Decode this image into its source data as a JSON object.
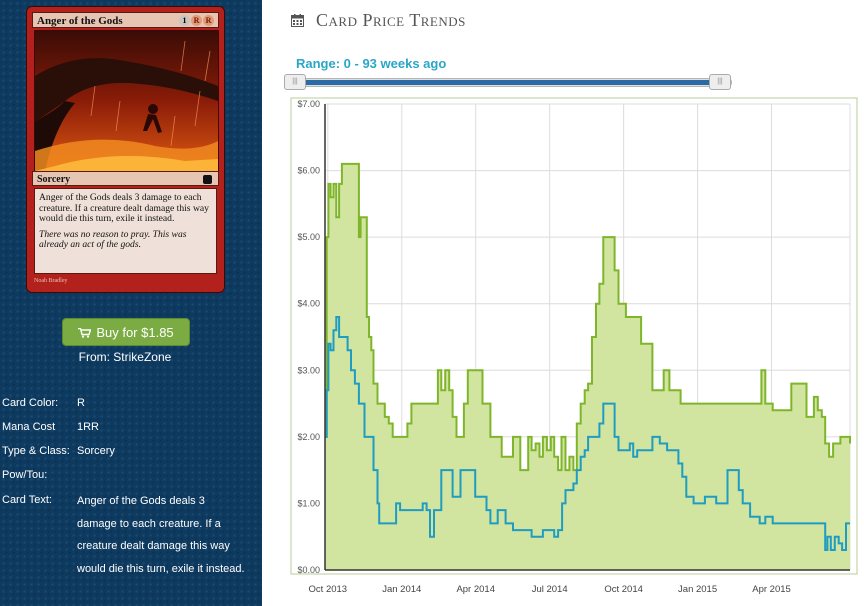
{
  "card": {
    "name": "Anger of the Gods",
    "mana_symbols": [
      "1",
      "R",
      "R"
    ],
    "type_line": "Sorcery",
    "rules_text": "Anger of the Gods deals 3 damage to each creature. If a creature dealt damage this way would die this turn, exile it instead.",
    "flavor_text": "There was no reason to pray. This was already an act of the gods.",
    "artist": "Noah Bradley"
  },
  "buy": {
    "label": "Buy for $1.85",
    "from": "From: StrikeZone",
    "icon": "shopping-cart-icon"
  },
  "attributes": {
    "color_label": "Card Color:",
    "color_value": "R",
    "mana_label": "Mana Cost",
    "mana_value": "1RR",
    "type_label": "Type & Class:",
    "type_value": "Sorcery",
    "powtou_label": "Pow/Tou:",
    "powtou_value": "",
    "text_label": "Card Text:",
    "text_value": "Anger of the Gods deals 3 damage to each creature. If a creature dealt damage this way would die this turn, exile it instead."
  },
  "header": {
    "title": "Card Price Trends",
    "icon": "calendar-icon"
  },
  "range": {
    "label": "Range: 0 - 93 weeks ago",
    "min_weeks_ago": 0,
    "max_weeks_ago": 93
  },
  "colors": {
    "sidebar": "#0f3a5f",
    "buy_button": "#7aac43",
    "range_label": "#2aa6c8",
    "slider_fill": "#2c6aa5",
    "paper_line": "#7fb52a",
    "paper_fill": "#d1e5a0",
    "online_line": "#1f9cc1"
  },
  "chart_data": {
    "type": "line",
    "x_tick_labels": [
      "Oct 2013",
      "Jan 2014",
      "Apr 2014",
      "Jul 2014",
      "Oct 2014",
      "Jan 2015",
      "Apr 2015"
    ],
    "y_tick_labels": [
      "$0.00",
      "$1.00",
      "$2.00",
      "$3.00",
      "$4.00",
      "$5.00",
      "$6.00",
      "$7.00"
    ],
    "ylim": [
      0,
      7
    ],
    "x_unit": "weeks since Sep 2013",
    "xlim": [
      0,
      93
    ],
    "grid": true,
    "series": [
      {
        "color": "#7fb52a",
        "fill": "#d1e5a0",
        "type": "area",
        "points": [
          [
            0,
            2.0
          ],
          [
            0.3,
            5.0
          ],
          [
            0.6,
            5.8
          ],
          [
            1,
            5.6
          ],
          [
            1.5,
            5.8
          ],
          [
            2,
            5.3
          ],
          [
            2.5,
            5.8
          ],
          [
            3,
            6.1
          ],
          [
            4,
            6.1
          ],
          [
            5,
            6.1
          ],
          [
            5.6,
            6.1
          ],
          [
            6,
            5.0
          ],
          [
            6.3,
            5.3
          ],
          [
            7,
            5.3
          ],
          [
            7.4,
            3.8
          ],
          [
            7.8,
            3.5
          ],
          [
            8.2,
            3.3
          ],
          [
            8.6,
            2.8
          ],
          [
            9.3,
            2.5
          ],
          [
            10,
            2.5
          ],
          [
            10.6,
            2.3
          ],
          [
            11.3,
            2.2
          ],
          [
            12,
            2.0
          ],
          [
            13,
            2.0
          ],
          [
            14,
            2.0
          ],
          [
            14.6,
            2.2
          ],
          [
            15.3,
            2.5
          ],
          [
            16.6,
            2.5
          ],
          [
            17.3,
            2.5
          ],
          [
            18,
            2.5
          ],
          [
            19.3,
            2.5
          ],
          [
            20,
            3.0
          ],
          [
            20.6,
            2.7
          ],
          [
            21.3,
            3.0
          ],
          [
            22,
            2.7
          ],
          [
            22.6,
            2.3
          ],
          [
            23.3,
            2.0
          ],
          [
            24.6,
            2.5
          ],
          [
            25.3,
            3.0
          ],
          [
            26,
            3.0
          ],
          [
            27.3,
            3.0
          ],
          [
            27.9,
            2.5
          ],
          [
            28.5,
            2.5
          ],
          [
            29.3,
            2.0
          ],
          [
            30,
            2.0
          ],
          [
            31.3,
            1.7
          ],
          [
            32,
            1.7
          ],
          [
            33.3,
            2.0
          ],
          [
            34,
            2.0
          ],
          [
            34.6,
            1.5
          ],
          [
            35.3,
            1.5
          ],
          [
            36,
            2.0
          ],
          [
            36.6,
            1.8
          ],
          [
            37.3,
            1.9
          ],
          [
            38,
            1.7
          ],
          [
            38.6,
            2.0
          ],
          [
            39.3,
            1.8
          ],
          [
            40,
            2.0
          ],
          [
            40.6,
            1.7
          ],
          [
            41.3,
            1.5
          ],
          [
            41.9,
            2.0
          ],
          [
            42.6,
            1.5
          ],
          [
            43.3,
            1.7
          ],
          [
            44,
            1.5
          ],
          [
            44.6,
            2.2
          ],
          [
            45.3,
            2.5
          ],
          [
            46,
            2.7
          ],
          [
            46.6,
            2.8
          ],
          [
            47.3,
            3.5
          ],
          [
            48,
            4.0
          ],
          [
            48.6,
            4.3
          ],
          [
            49.3,
            5.0
          ],
          [
            50,
            5.0
          ],
          [
            50.6,
            5.0
          ],
          [
            51.3,
            4.5
          ],
          [
            52,
            4.0
          ],
          [
            52.6,
            4.0
          ],
          [
            53.3,
            3.8
          ],
          [
            54,
            3.8
          ],
          [
            54.6,
            3.8
          ],
          [
            55.3,
            3.8
          ],
          [
            56,
            3.4
          ],
          [
            57,
            3.4
          ],
          [
            58,
            2.7
          ],
          [
            59.3,
            2.7
          ],
          [
            60,
            3.0
          ],
          [
            61,
            2.7
          ],
          [
            62,
            2.7
          ],
          [
            63,
            2.5
          ],
          [
            65,
            2.5
          ],
          [
            67,
            2.5
          ],
          [
            69,
            2.5
          ],
          [
            71,
            2.5
          ],
          [
            73,
            2.5
          ],
          [
            75,
            2.5
          ],
          [
            76.6,
            2.5
          ],
          [
            77.3,
            3.0
          ],
          [
            78,
            2.5
          ],
          [
            79.3,
            2.4
          ],
          [
            80,
            2.4
          ],
          [
            82,
            2.4
          ],
          [
            82.6,
            2.8
          ],
          [
            84,
            2.8
          ],
          [
            85.3,
            2.3
          ],
          [
            86.6,
            2.6
          ],
          [
            87.3,
            2.4
          ],
          [
            88,
            2.3
          ],
          [
            88.6,
            1.9
          ],
          [
            89.3,
            1.7
          ],
          [
            90,
            1.9
          ],
          [
            91.3,
            2.0
          ],
          [
            92,
            2.0
          ],
          [
            93,
            1.9
          ]
        ]
      },
      {
        "color": "#1f9cc1",
        "type": "line",
        "points": [
          [
            0,
            2.0
          ],
          [
            0.3,
            2.7
          ],
          [
            0.6,
            3.4
          ],
          [
            1,
            3.3
          ],
          [
            1.5,
            3.6
          ],
          [
            2,
            3.8
          ],
          [
            2.5,
            3.5
          ],
          [
            3.3,
            3.5
          ],
          [
            4,
            3.3
          ],
          [
            4.6,
            3.0
          ],
          [
            5.3,
            2.8
          ],
          [
            6,
            2.5
          ],
          [
            7,
            2.0
          ],
          [
            8,
            2.0
          ],
          [
            8.6,
            1.5
          ],
          [
            9.3,
            1.0
          ],
          [
            9.6,
            0.7
          ],
          [
            10.6,
            0.7
          ],
          [
            11.3,
            0.7
          ],
          [
            12,
            0.7
          ],
          [
            12.6,
            1.0
          ],
          [
            13.3,
            0.9
          ],
          [
            14,
            0.9
          ],
          [
            15.3,
            0.9
          ],
          [
            16,
            0.9
          ],
          [
            17.3,
            1.0
          ],
          [
            18,
            0.9
          ],
          [
            18.6,
            0.5
          ],
          [
            19.3,
            0.9
          ],
          [
            20,
            0.9
          ],
          [
            20.6,
            1.5
          ],
          [
            21.3,
            1.5
          ],
          [
            22,
            1.5
          ],
          [
            22.6,
            1.1
          ],
          [
            23.3,
            1.1
          ],
          [
            24,
            1.5
          ],
          [
            25.3,
            1.5
          ],
          [
            26.6,
            1.1
          ],
          [
            27.3,
            1.1
          ],
          [
            28,
            1.1
          ],
          [
            28.6,
            0.9
          ],
          [
            29.3,
            0.7
          ],
          [
            30,
            0.7
          ],
          [
            30.6,
            0.9
          ],
          [
            31.3,
            0.9
          ],
          [
            32,
            0.7
          ],
          [
            33.3,
            0.6
          ],
          [
            34,
            0.6
          ],
          [
            35.3,
            0.6
          ],
          [
            36,
            0.6
          ],
          [
            36.6,
            0.5
          ],
          [
            37.3,
            0.5
          ],
          [
            38,
            0.5
          ],
          [
            38.6,
            0.6
          ],
          [
            39.3,
            0.6
          ],
          [
            40,
            0.6
          ],
          [
            40.6,
            0.5
          ],
          [
            41.3,
            0.6
          ],
          [
            42,
            1.0
          ],
          [
            42.6,
            1.2
          ],
          [
            43.3,
            1.2
          ],
          [
            44,
            1.3
          ],
          [
            44.6,
            1.5
          ],
          [
            45.3,
            1.7
          ],
          [
            46,
            1.8
          ],
          [
            46.6,
            2.0
          ],
          [
            47.3,
            2.0
          ],
          [
            48,
            2.0
          ],
          [
            48.6,
            2.2
          ],
          [
            49.3,
            2.5
          ],
          [
            50,
            2.5
          ],
          [
            50.6,
            2.5
          ],
          [
            51.3,
            2.0
          ],
          [
            52,
            1.8
          ],
          [
            53.3,
            1.8
          ],
          [
            54,
            1.9
          ],
          [
            54.6,
            1.7
          ],
          [
            55.3,
            1.8
          ],
          [
            56,
            1.8
          ],
          [
            57,
            1.8
          ],
          [
            58,
            2.0
          ],
          [
            59.3,
            1.9
          ],
          [
            60.6,
            1.8
          ],
          [
            62,
            1.8
          ],
          [
            62.6,
            1.6
          ],
          [
            63.3,
            1.4
          ],
          [
            64,
            1.1
          ],
          [
            65.3,
            1.0
          ],
          [
            66,
            1.0
          ],
          [
            67.3,
            1.1
          ],
          [
            68,
            1.1
          ],
          [
            69.3,
            1.0
          ],
          [
            70,
            1.0
          ],
          [
            71.3,
            1.5
          ],
          [
            72,
            1.5
          ],
          [
            72.6,
            1.5
          ],
          [
            73.3,
            1.2
          ],
          [
            74,
            1.0
          ],
          [
            75.3,
            0.8
          ],
          [
            76,
            0.8
          ],
          [
            77,
            0.7
          ],
          [
            78,
            0.8
          ],
          [
            79.3,
            0.7
          ],
          [
            80,
            0.7
          ],
          [
            81.3,
            0.7
          ],
          [
            82,
            0.7
          ],
          [
            83.3,
            0.7
          ],
          [
            84,
            0.7
          ],
          [
            85,
            0.7
          ],
          [
            86,
            0.7
          ],
          [
            87,
            0.7
          ],
          [
            88,
            0.7
          ],
          [
            88.6,
            0.3
          ],
          [
            89,
            0.5
          ],
          [
            89.6,
            0.3
          ],
          [
            90.3,
            0.5
          ],
          [
            91,
            0.4
          ],
          [
            91.6,
            0.3
          ],
          [
            92.3,
            0.7
          ],
          [
            93,
            0.7
          ]
        ]
      }
    ]
  }
}
